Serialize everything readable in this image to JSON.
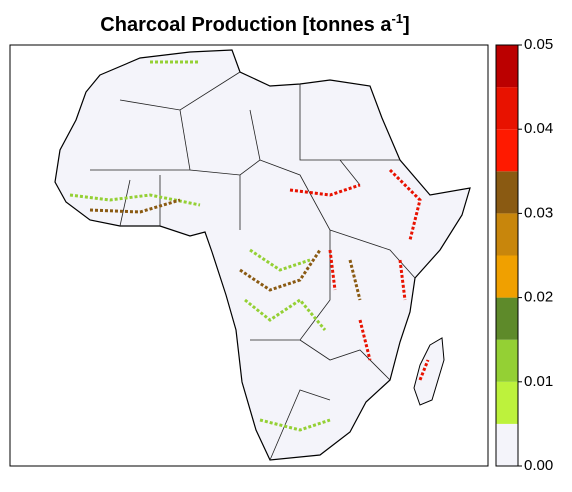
{
  "title": "Charcoal Production [tonnes a",
  "title_superscript": "-1",
  "title_end": "]",
  "colorbar": {
    "lim": [
      0,
      0.05
    ],
    "bins": [
      0,
      0.005,
      0.01,
      0.015,
      0.02,
      0.025,
      0.03,
      0.035,
      0.04,
      0.045,
      0.05
    ],
    "colors": [
      "#f4f4fa",
      "#bdf23c",
      "#94d034",
      "#5e8a2a",
      "#f0a000",
      "#c8860c",
      "#8a5a12",
      "#ff1a00",
      "#e81200",
      "#bb0000"
    ],
    "ticks": [
      {
        "value": 0,
        "label": "0.00"
      },
      {
        "value": 0.01,
        "label": "0.01"
      },
      {
        "value": 0.02,
        "label": "0.02"
      },
      {
        "value": 0.03,
        "label": "0.03"
      },
      {
        "value": 0.04,
        "label": "0.04"
      },
      {
        "value": 0.05,
        "label": "0.05"
      }
    ]
  }
}
